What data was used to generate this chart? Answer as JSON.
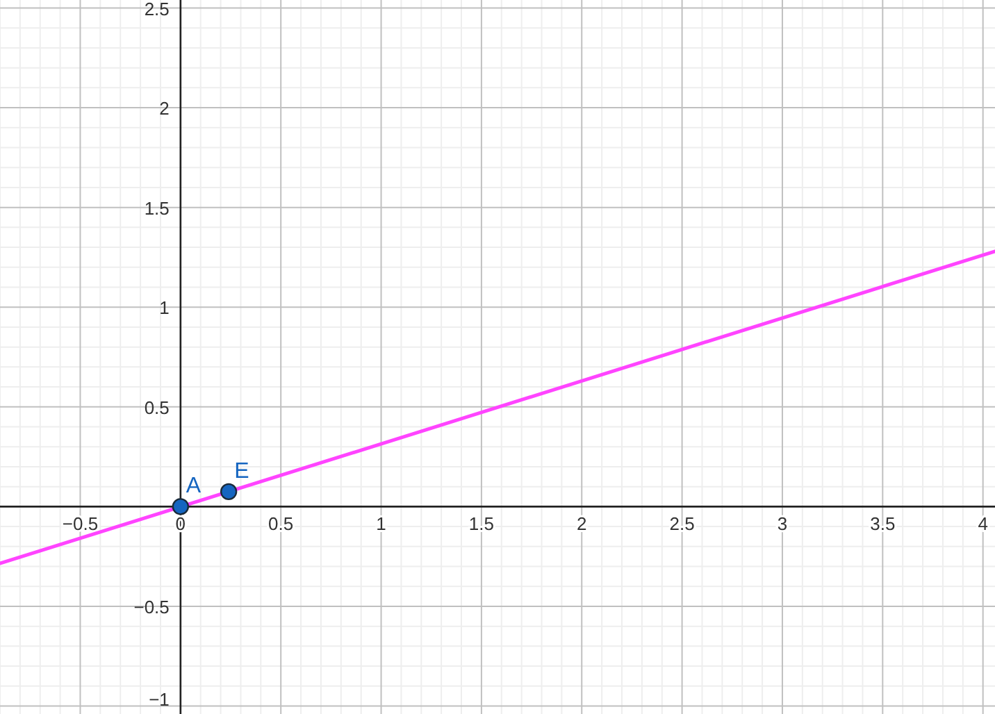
{
  "chart_data": {
    "type": "line",
    "xlim": [
      -0.9,
      4.06
    ],
    "ylim": [
      -1.04,
      2.54
    ],
    "xticks": [
      -0.5,
      {
        "value": 0,
        "label": "0"
      },
      0.5,
      1,
      1.5,
      2,
      2.5,
      3,
      3.5,
      4
    ],
    "yticks": [
      -1,
      -0.5,
      {
        "value": 0,
        "label": null
      },
      0.5,
      1,
      1.5,
      2,
      2.5
    ],
    "grid": true,
    "line_style": "solid",
    "series": [
      {
        "color": "#ff44ff",
        "x": [
          -0.9,
          4.06
        ],
        "values": [
          -0.285,
          1.28
        ]
      },
      {
        "type": "scatter",
        "color": "#1565c0",
        "marker": "circle",
        "x": [
          0,
          0.24
        ],
        "values": [
          0,
          0.075
        ]
      }
    ],
    "annotations": [
      {
        "text": "A",
        "x": 0,
        "y": 0
      },
      {
        "text": "E",
        "x": 0.24,
        "y": 0.075
      }
    ]
  }
}
